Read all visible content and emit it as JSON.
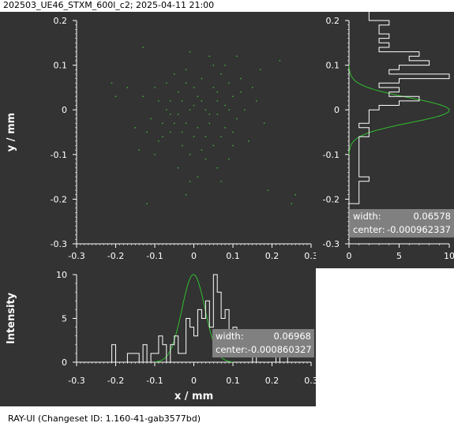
{
  "window": {
    "title": "202503_UE46_STXM_600l_c2; 2025-04-11 21:00",
    "footer": "RAY-UI (Changeset ID: 1.160-41-gab3577bd)"
  },
  "colors": {
    "panel_bg": "#333333",
    "axis": "#ffffff",
    "scatter_points": "#3fbf3f",
    "histogram_line": "#ffffff",
    "fit_line": "#2fbf2f",
    "stats_box": "#808080"
  },
  "chart_data": [
    {
      "type": "scatter",
      "xlabel": "",
      "ylabel": "y / mm",
      "xlim": [
        -0.3,
        0.3
      ],
      "ylim": [
        -0.3,
        0.2
      ],
      "xticks": [
        "-0.3",
        "-0.2",
        "-0.1",
        "0",
        "0.1",
        "0.2",
        "0.3"
      ],
      "yticks": [
        "0.2",
        "0.1",
        "0",
        "-0.1",
        "-0.2",
        "-0.3"
      ],
      "points": [
        [
          -0.07,
          0.06
        ],
        [
          -0.02,
          0.09
        ],
        [
          0.04,
          0.12
        ],
        [
          0.07,
          0.08
        ],
        [
          0.12,
          0.07
        ],
        [
          -0.04,
          0.04
        ],
        [
          0.0,
          0.05
        ],
        [
          0.05,
          0.05
        ],
        [
          0.09,
          0.06
        ],
        [
          0.15,
          0.05
        ],
        [
          -0.09,
          0.02
        ],
        [
          -0.06,
          0.02
        ],
        [
          -0.03,
          0.02
        ],
        [
          0.01,
          0.03
        ],
        [
          0.02,
          0.02
        ],
        [
          0.06,
          0.02
        ],
        [
          0.1,
          0.03
        ],
        [
          -0.07,
          0.0
        ],
        [
          -0.04,
          -0.01
        ],
        [
          -0.01,
          0.0
        ],
        [
          0.03,
          0.0
        ],
        [
          0.06,
          -0.01
        ],
        [
          0.09,
          0.0
        ],
        [
          0.13,
          0.0
        ],
        [
          -0.08,
          -0.03
        ],
        [
          -0.05,
          -0.03
        ],
        [
          -0.02,
          -0.03
        ],
        [
          0.01,
          -0.04
        ],
        [
          0.04,
          -0.03
        ],
        [
          0.08,
          -0.04
        ],
        [
          -0.12,
          -0.05
        ],
        [
          -0.06,
          -0.05
        ],
        [
          0.0,
          -0.06
        ],
        [
          0.03,
          -0.06
        ],
        [
          0.07,
          -0.06
        ],
        [
          -0.15,
          -0.04
        ],
        [
          -0.09,
          -0.07
        ],
        [
          -0.03,
          -0.08
        ],
        [
          0.05,
          -0.08
        ],
        [
          0.1,
          -0.08
        ],
        [
          -0.1,
          -0.1
        ],
        [
          -0.01,
          -0.1
        ],
        [
          0.03,
          -0.11
        ],
        [
          0.06,
          -0.13
        ],
        [
          -0.04,
          -0.13
        ],
        [
          0.01,
          -0.15
        ],
        [
          -0.01,
          -0.16
        ],
        [
          -0.02,
          -0.19
        ],
        [
          0.16,
          0.02
        ],
        [
          0.18,
          -0.03
        ],
        [
          -0.13,
          0.03
        ],
        [
          0.11,
          -0.02
        ],
        [
          -0.11,
          -0.02
        ],
        [
          0.02,
          0.07
        ],
        [
          -0.05,
          0.08
        ],
        [
          0.08,
          0.1
        ],
        [
          -0.14,
          -0.09
        ],
        [
          0.14,
          -0.07
        ],
        [
          0.06,
          0.04
        ],
        [
          -0.02,
          0.06
        ],
        [
          0.0,
          0.01
        ],
        [
          0.04,
          -0.01
        ],
        [
          -0.06,
          -0.01
        ],
        [
          0.1,
          -0.05
        ],
        [
          -0.08,
          -0.06
        ],
        [
          0.02,
          -0.09
        ],
        [
          0.08,
          0.01
        ],
        [
          -0.03,
          -0.05
        ],
        [
          0.12,
          0.04
        ],
        [
          -0.1,
          0.05
        ],
        [
          -0.2,
          0.03
        ],
        [
          0.22,
          0.11
        ],
        [
          -0.13,
          0.14
        ],
        [
          0.26,
          -0.19
        ],
        [
          0.25,
          -0.21
        ],
        [
          -0.12,
          -0.21
        ],
        [
          0.19,
          -0.18
        ],
        [
          -0.21,
          0.06
        ],
        [
          0.07,
          -0.16
        ],
        [
          0.11,
          0.12
        ],
        [
          0.17,
          0.09
        ],
        [
          -0.17,
          0.05
        ],
        [
          0.05,
          0.1
        ],
        [
          -0.01,
          0.13
        ],
        [
          0.09,
          -0.11
        ]
      ]
    },
    {
      "type": "line",
      "orientation": "horizontal",
      "xlim": [
        0,
        10
      ],
      "ylim": [
        -0.3,
        0.2
      ],
      "xticks": [
        "0",
        "5",
        "10"
      ],
      "yticks": [
        "0.2",
        "0.1",
        "0",
        "-0.1",
        "-0.2",
        "-0.3"
      ],
      "bin_width": 0.01,
      "bins": {
        "y_start": -0.21,
        "counts": [
          1,
          1,
          1,
          1,
          1,
          2,
          1,
          1,
          1,
          1,
          1,
          1,
          1,
          1,
          1,
          2,
          2,
          1,
          2,
          2,
          2,
          3,
          5,
          7,
          4,
          5,
          3,
          5,
          10,
          4,
          5,
          8,
          6,
          7,
          3,
          4,
          3,
          4,
          3,
          3,
          4,
          2,
          2,
          2,
          2,
          1,
          1,
          2,
          1,
          1,
          1,
          1,
          1,
          0,
          1,
          1,
          1,
          1,
          0,
          1,
          0,
          1,
          0,
          1,
          0,
          0,
          0,
          0,
          0,
          0,
          0
        ]
      },
      "stats": {
        "width_label": "width:",
        "width": "0.06578",
        "center_label": "center:",
        "center": "-0.000962337"
      }
    },
    {
      "type": "line",
      "xlabel": "x / mm",
      "ylabel": "Intensity",
      "xlim": [
        -0.3,
        0.3
      ],
      "ylim": [
        0,
        10
      ],
      "xticks": [
        "-0.3",
        "-0.2",
        "-0.1",
        "0",
        "0.1",
        "0.2",
        "0.3"
      ],
      "yticks": [
        "10",
        "5",
        "0"
      ],
      "bin_width": 0.01,
      "bins": {
        "x_start": -0.22,
        "counts": [
          0,
          2,
          0,
          0,
          0,
          1,
          1,
          1,
          0,
          2,
          0,
          1,
          1,
          3,
          2,
          0,
          2,
          3,
          1,
          1,
          5,
          4,
          3,
          6,
          5,
          7,
          4,
          10,
          8,
          5,
          6,
          3,
          4,
          2,
          1,
          1,
          1,
          0,
          1,
          2,
          1,
          1,
          1,
          0,
          1,
          1,
          0,
          0,
          0,
          0,
          0
        ]
      },
      "stats": {
        "width_label": "width:",
        "width": "0.06968",
        "center_label": "center:",
        "center": "-0.000860327"
      }
    }
  ]
}
